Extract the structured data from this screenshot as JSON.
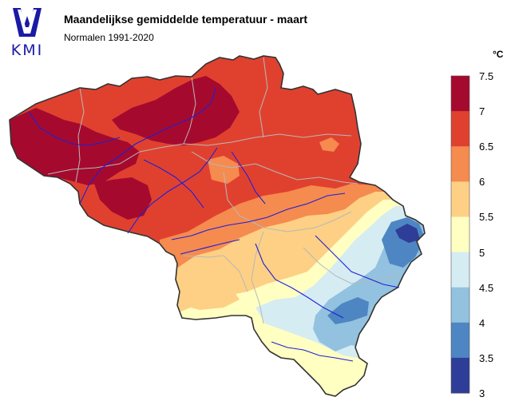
{
  "header": {
    "logo_text": "KMI",
    "title": "Maandelijkse gemiddelde temperatuur - maart",
    "subtitle": "Normalen 1991-2020"
  },
  "legend": {
    "unit": "°C",
    "ticks": [
      "7.5",
      "7",
      "6.5",
      "6",
      "5.5",
      "5",
      "4.5",
      "4",
      "3.5",
      "3"
    ],
    "bins": [
      {
        "range": "7 – 7.5",
        "color": "#a50a2e"
      },
      {
        "range": "6.5 – 7",
        "color": "#e0412f"
      },
      {
        "range": "6 – 6.5",
        "color": "#f58b4f"
      },
      {
        "range": "5.5 – 6",
        "color": "#fdd085"
      },
      {
        "range": "5 – 5.5",
        "color": "#ffffc2"
      },
      {
        "range": "4.5 – 5",
        "color": "#d5ecf3"
      },
      {
        "range": "4 – 4.5",
        "color": "#92c2df"
      },
      {
        "range": "3.5 – 4",
        "color": "#4d86c2"
      },
      {
        "range": "3 – 3.5",
        "color": "#2e3d97"
      }
    ]
  },
  "colors": {
    "logo_blue": "#1a1aa6",
    "river": "#1f1fd6",
    "province_border": "#b8b8b8",
    "country_border": "#333333"
  }
}
